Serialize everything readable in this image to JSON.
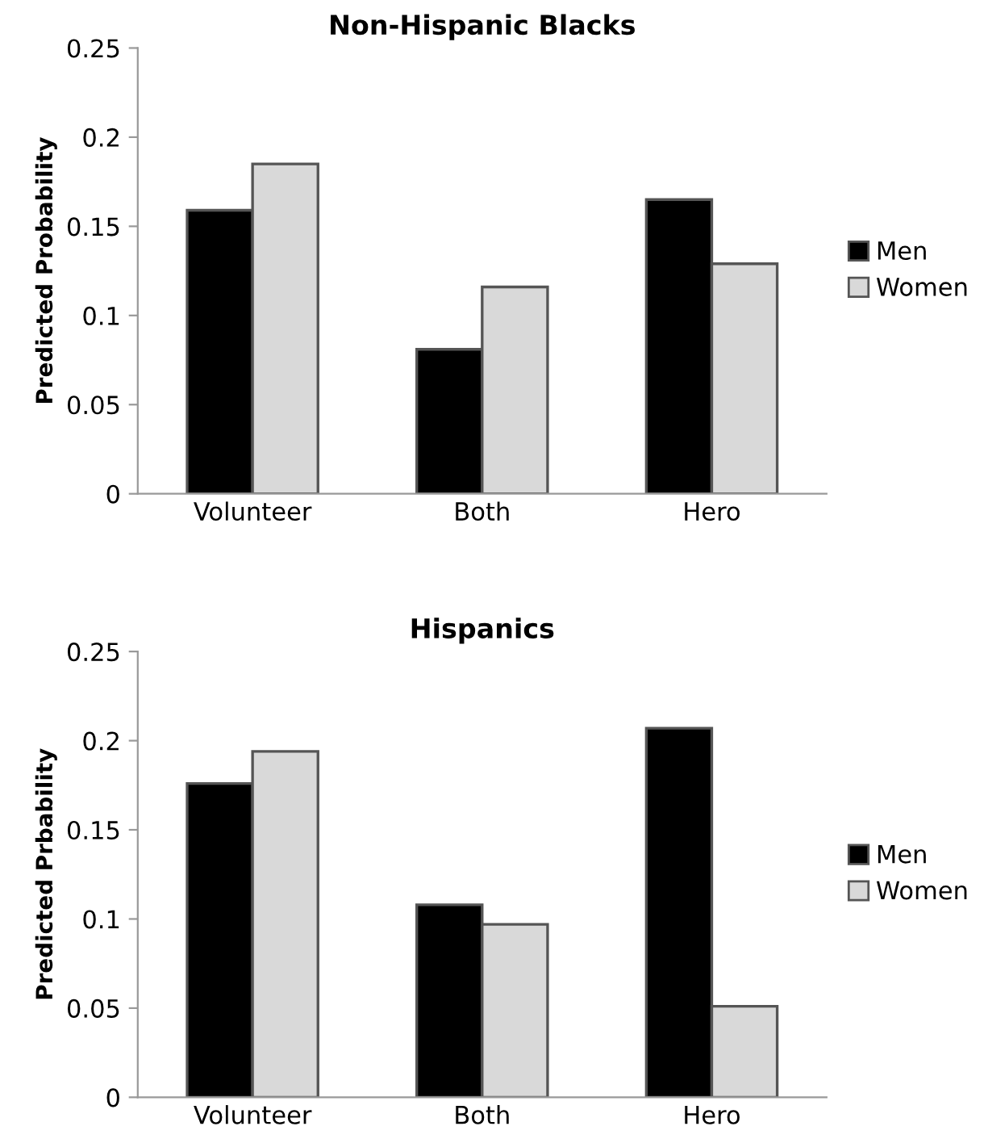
{
  "chart_data": [
    {
      "type": "bar",
      "title": "Non-Hispanic Blacks",
      "ylabel": "Predicted Probability",
      "categories": [
        "Volunteer",
        "Both",
        "Hero"
      ],
      "series": [
        {
          "name": "Men",
          "color": "#000000",
          "values": [
            0.159,
            0.081,
            0.165
          ]
        },
        {
          "name": "Women",
          "color": "#d9d9d9",
          "values": [
            0.185,
            0.116,
            0.129
          ]
        }
      ],
      "ylim": [
        0,
        0.25
      ],
      "yticks": [
        0,
        0.05,
        0.1,
        0.15,
        0.2,
        0.25
      ],
      "grid": false,
      "legend": "right"
    },
    {
      "type": "bar",
      "title": "Hispanics",
      "ylabel": "Predicted Prbability",
      "categories": [
        "Volunteer",
        "Both",
        "Hero"
      ],
      "series": [
        {
          "name": "Men",
          "color": "#000000",
          "values": [
            0.176,
            0.108,
            0.207
          ]
        },
        {
          "name": "Women",
          "color": "#d9d9d9",
          "values": [
            0.194,
            0.097,
            0.051
          ]
        }
      ],
      "ylim": [
        0,
        0.25
      ],
      "yticks": [
        0,
        0.05,
        0.1,
        0.15,
        0.2,
        0.25
      ],
      "grid": false,
      "legend": "right"
    }
  ]
}
